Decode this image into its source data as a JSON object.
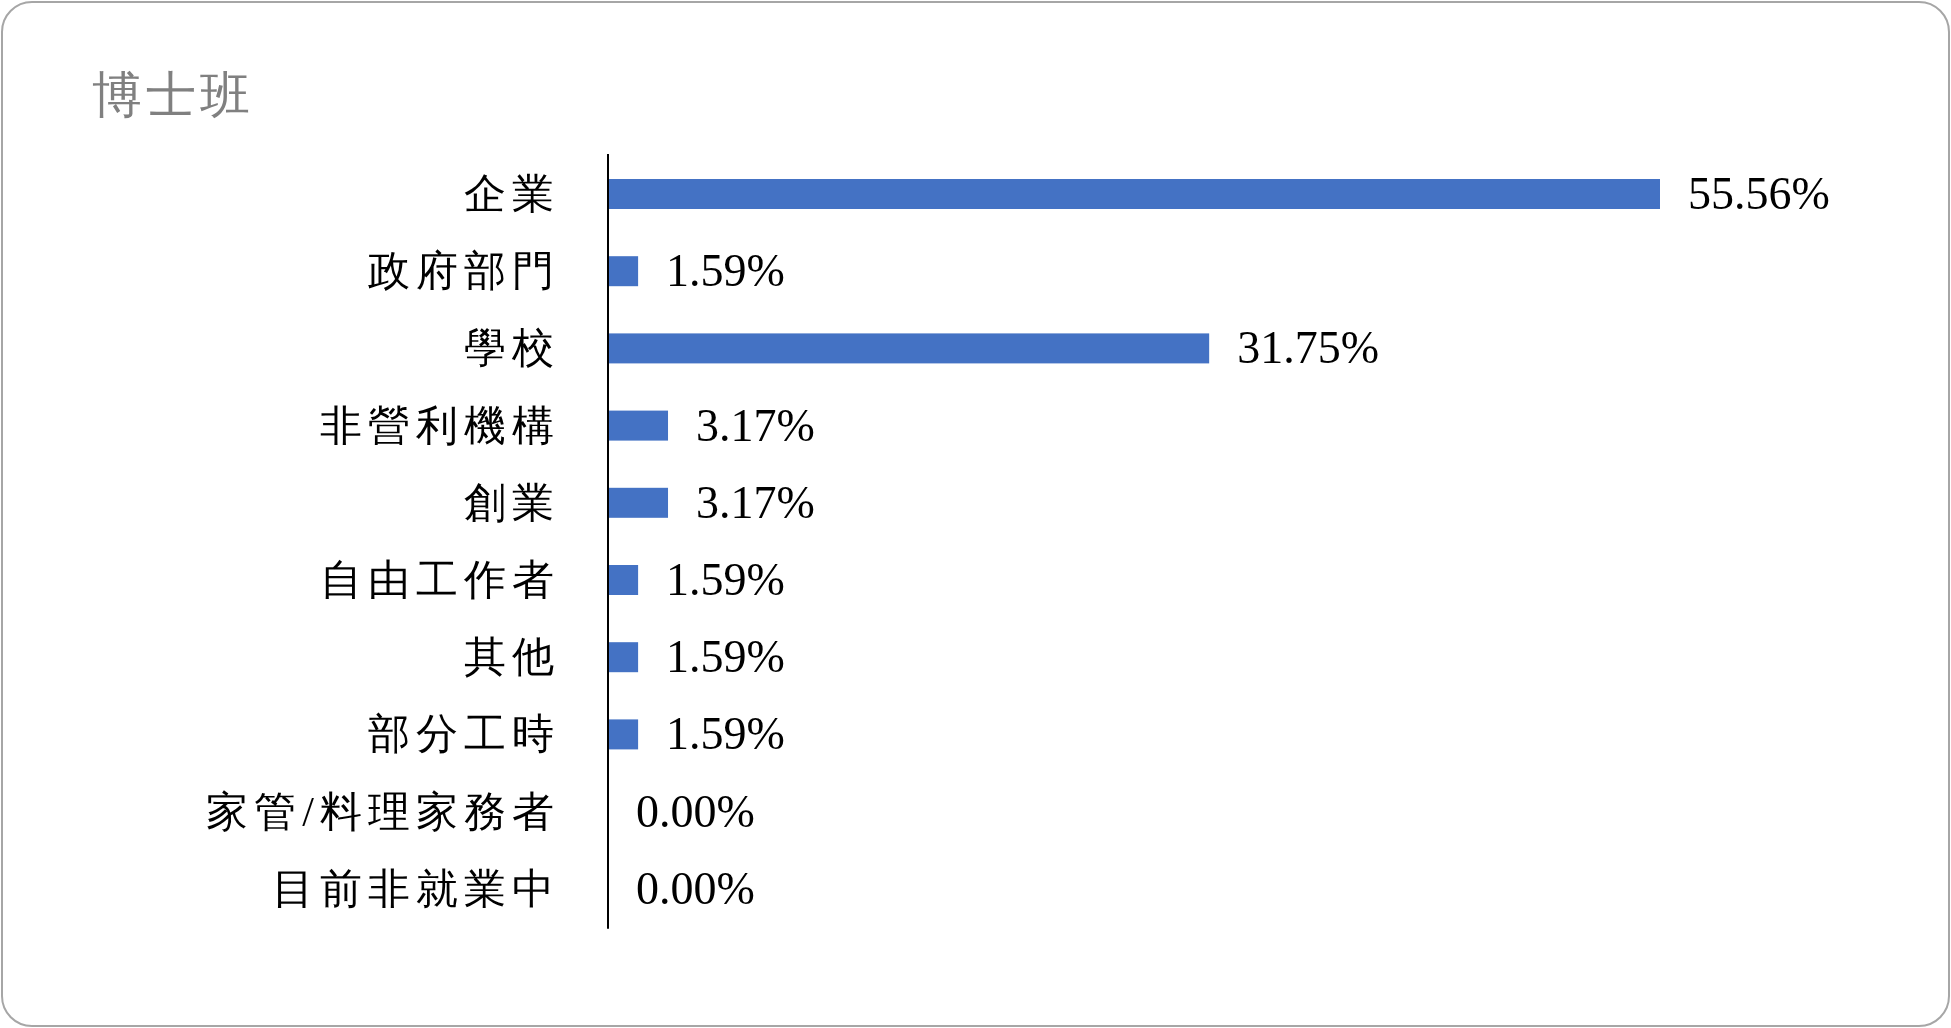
{
  "chart_data": {
    "type": "bar",
    "orientation": "horizontal",
    "title": "博士班",
    "categories": [
      "企業",
      "政府部門",
      "學校",
      "非營利機構",
      "創業",
      "自由工作者",
      "其他",
      "部分工時",
      "家管/料理家務者",
      "目前非就業中"
    ],
    "values": [
      55.56,
      1.59,
      31.75,
      3.17,
      3.17,
      1.59,
      1.59,
      1.59,
      0.0,
      0.0
    ],
    "value_labels": [
      "55.56%",
      "1.59%",
      "31.75%",
      "3.17%",
      "3.17%",
      "1.59%",
      "1.59%",
      "1.59%",
      "0.00%",
      "0.00%"
    ],
    "color": "#4472c4"
  }
}
